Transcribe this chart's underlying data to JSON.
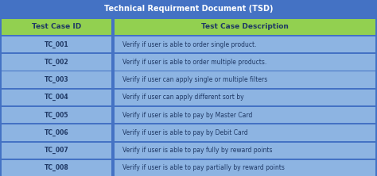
{
  "title": "Technical Requirment Document (TSD)",
  "title_bg": "#4472C4",
  "title_fg": "#FFFFFF",
  "header_bg": "#92D050",
  "header_fg": "#1F3864",
  "col1_header": "Test Case ID",
  "col2_header": "Test Case Description",
  "row_bg": "#8DB4E2",
  "row_fg": "#1F3864",
  "border_color": "#4472C4",
  "rows": [
    [
      "TC_001",
      "Verify if user is able to order single product."
    ],
    [
      "TC_002",
      "Verify if user is able to order multiple products."
    ],
    [
      "TC_003",
      "Verify if user can apply single or multiple filters"
    ],
    [
      "TC_004",
      "Verify if user can apply different sort by"
    ],
    [
      "TC_005",
      "Verify if user is able to pay by Master Card"
    ],
    [
      "TC_006",
      "Verify if user is able to pay by Debit Card"
    ],
    [
      "TC_007",
      "Verify if user is able to pay fully by reward points"
    ],
    [
      "TC_008",
      "Verify if user is able to pay partially by reward points"
    ]
  ],
  "col_split": 0.3,
  "figsize": [
    4.74,
    2.22
  ],
  "dpi": 100,
  "title_fontsize": 7.0,
  "header_fontsize": 6.5,
  "cell_fontsize": 5.5
}
